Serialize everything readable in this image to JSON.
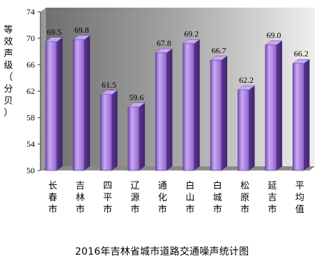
{
  "chart_data": {
    "type": "bar",
    "title": "2016年吉林省城市道路交通噪声统计图",
    "ylabel": "等效声级（分贝）",
    "xlabel": "",
    "ylim": [
      50,
      74
    ],
    "yticks": [
      50,
      54,
      58,
      62,
      66,
      70,
      74
    ],
    "categories": [
      "长春市",
      "吉林市",
      "四平市",
      "辽源市",
      "通化市",
      "白山市",
      "白城市",
      "松原市",
      "延吉市",
      "平均值"
    ],
    "values": [
      69.5,
      69.8,
      61.5,
      59.6,
      67.8,
      69.2,
      66.7,
      62.2,
      69.0,
      66.2
    ],
    "value_labels": [
      "69.5",
      "69.8",
      "61.5",
      "59.6",
      "67.8",
      "69.2",
      "66.7",
      "62.2",
      "69.0",
      "66.2"
    ],
    "grid": false,
    "legend": "none",
    "colors": {
      "bar_front": "#9b6fd6",
      "bar_side": "#5e3a94",
      "bar_top": "#c7a8ef",
      "plot_background": "#a3a3a3",
      "floor": "#7f7f7f"
    }
  }
}
